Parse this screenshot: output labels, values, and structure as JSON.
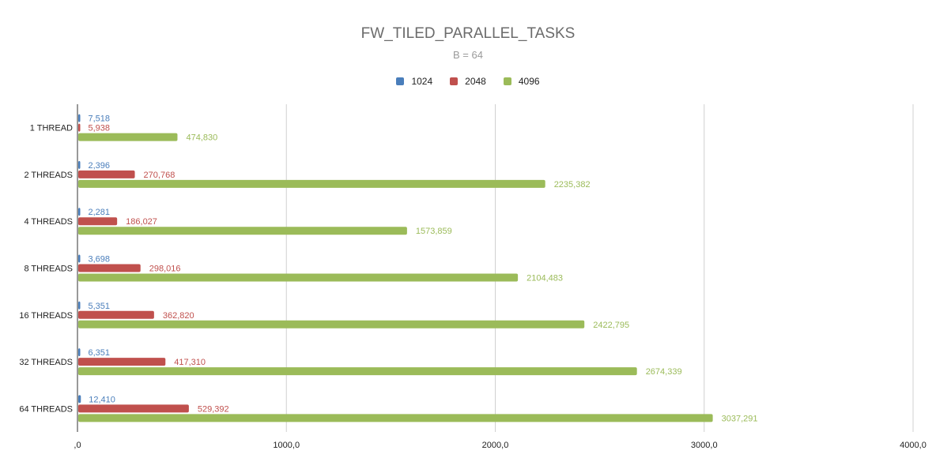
{
  "chart_data": {
    "type": "bar",
    "orientation": "horizontal",
    "title": "FW_TILED_PARALLEL_TASKS",
    "subtitle": "B = 64",
    "categories": [
      "1 THREAD",
      "2 THREADS",
      "4 THREADS",
      "8 THREADS",
      "16 THREADS",
      "32 THREADS",
      "64 THREADS"
    ],
    "series": [
      {
        "name": "1024",
        "color": "#4a7ebb",
        "values": [
          7.518,
          2.396,
          2.281,
          3.698,
          5.351,
          6.351,
          12.41
        ],
        "labels": [
          "7,518",
          "2,396",
          "2,281",
          "3,698",
          "5,351",
          "6,351",
          "12,410"
        ]
      },
      {
        "name": "2048",
        "color": "#c0504d",
        "values": [
          5.938,
          270.768,
          186.027,
          298.016,
          362.82,
          417.31,
          529.392
        ],
        "labels": [
          "5,938",
          "270,768",
          "186,027",
          "298,016",
          "362,820",
          "417,310",
          "529,392"
        ]
      },
      {
        "name": "4096",
        "color": "#9bbb59",
        "values": [
          474.83,
          2235.382,
          1573.859,
          2104.483,
          2422.795,
          2674.339,
          3037.291
        ],
        "labels": [
          "474,830",
          "2235,382",
          "1573,859",
          "2104,483",
          "2422,795",
          "2674,339",
          "3037,291"
        ]
      }
    ],
    "xlim": [
      0,
      4000
    ],
    "xticks": [
      0,
      1000,
      2000,
      3000,
      4000
    ],
    "xtick_labels": [
      ",0",
      "1000,0",
      "2000,0",
      "3000,0",
      "4000,0"
    ],
    "grid": true,
    "legend_position": "top-center",
    "data_labels": true
  }
}
